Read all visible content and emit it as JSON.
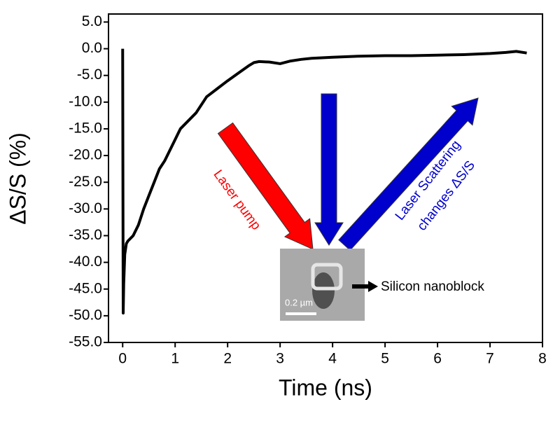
{
  "chart_data": {
    "type": "line",
    "x_label": "Time (ns)",
    "y_label": "ΔS/S (%)",
    "x": [
      0,
      0.01,
      0.02,
      0.04,
      0.07,
      0.1,
      0.2,
      0.3,
      0.4,
      0.5,
      0.6,
      0.7,
      0.8,
      0.9,
      1.0,
      1.1,
      1.2,
      1.4,
      1.6,
      1.8,
      2.0,
      2.2,
      2.4,
      2.5,
      2.6,
      2.8,
      3.0,
      3.2,
      3.4,
      3.6,
      4.0,
      4.5,
      5.0,
      5.5,
      6.0,
      6.5,
      7.0,
      7.3,
      7.5,
      7.7
    ],
    "series": [
      {
        "name": "ΔS/S",
        "color": "#000000",
        "values": [
          0,
          -49.5,
          -44,
          -38.5,
          -36.5,
          -36,
          -35,
          -33,
          -30,
          -27.5,
          -25,
          -22.5,
          -21,
          -19,
          -17,
          -15,
          -14,
          -12,
          -9,
          -7.5,
          -6,
          -4.6,
          -3.2,
          -2.6,
          -2.4,
          -2.5,
          -2.8,
          -2.3,
          -2,
          -1.8,
          -1.6,
          -1.4,
          -1.3,
          -1.3,
          -1.2,
          -1.1,
          -0.9,
          -0.7,
          -0.5,
          -0.8
        ]
      }
    ],
    "xlim": [
      -0.27,
      8.0
    ],
    "ylim": [
      -55,
      6.5
    ],
    "xticks": [
      0,
      1,
      2,
      3,
      4,
      5,
      6,
      7,
      8
    ],
    "yticks": [
      {
        "value": 5,
        "label": "5.0"
      },
      {
        "value": 0,
        "label": "0.0"
      },
      {
        "value": -5,
        "label": "-5.0"
      },
      {
        "value": -10,
        "label": "-10.0"
      },
      {
        "value": -15,
        "label": "-15.0"
      },
      {
        "value": -20,
        "label": "-20.0"
      },
      {
        "value": -25,
        "label": "-25.0"
      },
      {
        "value": -30,
        "label": "-30.0"
      },
      {
        "value": -35,
        "label": "-35.0"
      },
      {
        "value": -40,
        "label": "-40.0"
      },
      {
        "value": -45,
        "label": "-45.0"
      },
      {
        "value": -50,
        "label": "-50.0"
      },
      {
        "value": -55,
        "label": "-55.0"
      }
    ],
    "grid": false,
    "annotations": {
      "laser_pump": "Laser pump",
      "scattering": [
        "Laser Scattering",
        "changes ΔS/S"
      ],
      "nanoblock": "Silicon nanoblock",
      "scale_bar": "0.2 µm"
    }
  }
}
